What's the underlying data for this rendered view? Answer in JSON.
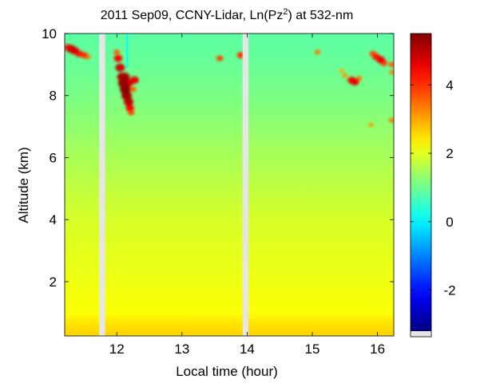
{
  "chart_data": {
    "type": "heatmap",
    "title": {
      "prefix": "2011 Sep09, CCNY-Lidar, Ln(Pz",
      "superscript": "2",
      "suffix": ") at 532-nm"
    },
    "xlabel": "Local time (hour)",
    "ylabel": "Altitude (km)",
    "xlim": [
      11.2,
      16.25
    ],
    "ylim": [
      0.25,
      10
    ],
    "x_ticks": [
      12,
      13,
      14,
      15,
      16
    ],
    "x_tick_labels": [
      "12",
      "13",
      "14",
      "15",
      "16"
    ],
    "y_ticks": [
      2,
      4,
      6,
      8,
      10
    ],
    "y_tick_labels": [
      "2",
      "4",
      "6",
      "8",
      "10"
    ],
    "colorbar": {
      "range": [
        -3.2,
        5.5
      ],
      "ticks": [
        -2,
        0,
        2,
        4
      ],
      "tick_labels": [
        "-2",
        "0",
        "2",
        "4"
      ],
      "colormap": "jet",
      "nodata_color": "#e6e6e6"
    },
    "data_gaps": [
      {
        "x_start": 11.73,
        "x_end": 11.82
      },
      {
        "x_start": 13.93,
        "x_end": 14.02
      }
    ],
    "field_profile": [
      {
        "altitude_km": 0.3,
        "value": 2.6
      },
      {
        "altitude_km": 0.6,
        "value": 2.5
      },
      {
        "altitude_km": 1.0,
        "value": 2.2
      },
      {
        "altitude_km": 2.0,
        "value": 2.1
      },
      {
        "altitude_km": 3.0,
        "value": 2.0
      },
      {
        "altitude_km": 4.0,
        "value": 1.9
      },
      {
        "altitude_km": 5.0,
        "value": 1.7
      },
      {
        "altitude_km": 6.0,
        "value": 1.5
      },
      {
        "altitude_km": 7.0,
        "value": 1.3
      },
      {
        "altitude_km": 8.0,
        "value": 1.1
      },
      {
        "altitude_km": 9.0,
        "value": 0.95
      },
      {
        "altitude_km": 10.0,
        "value": 0.85
      }
    ],
    "cloud_features": [
      {
        "time_hour": 11.25,
        "altitude_km": 9.55,
        "value": 4.2
      },
      {
        "time_hour": 11.3,
        "altitude_km": 9.5,
        "value": 4.8
      },
      {
        "time_hour": 11.35,
        "altitude_km": 9.45,
        "value": 4.6
      },
      {
        "time_hour": 11.42,
        "altitude_km": 9.35,
        "value": 4.2
      },
      {
        "time_hour": 11.5,
        "altitude_km": 9.3,
        "value": 4.0
      },
      {
        "time_hour": 11.55,
        "altitude_km": 9.25,
        "value": 3.4
      },
      {
        "time_hour": 12.0,
        "altitude_km": 9.4,
        "value": 3.6
      },
      {
        "time_hour": 12.02,
        "altitude_km": 9.2,
        "value": 4.4
      },
      {
        "time_hour": 12.05,
        "altitude_km": 8.9,
        "value": 4.8
      },
      {
        "time_hour": 12.08,
        "altitude_km": 8.6,
        "value": 5.0
      },
      {
        "time_hour": 12.1,
        "altitude_km": 8.4,
        "value": 5.3
      },
      {
        "time_hour": 12.13,
        "altitude_km": 8.2,
        "value": 5.4
      },
      {
        "time_hour": 12.15,
        "altitude_km": 8.0,
        "value": 5.2
      },
      {
        "time_hour": 12.18,
        "altitude_km": 7.8,
        "value": 4.9
      },
      {
        "time_hour": 12.2,
        "altitude_km": 7.6,
        "value": 4.4
      },
      {
        "time_hour": 12.22,
        "altitude_km": 7.45,
        "value": 3.8
      },
      {
        "time_hour": 12.12,
        "altitude_km": 8.6,
        "value": 5.1
      },
      {
        "time_hour": 12.18,
        "altitude_km": 8.4,
        "value": 4.7
      },
      {
        "time_hour": 12.27,
        "altitude_km": 8.5,
        "value": 4.6
      },
      {
        "time_hour": 12.25,
        "altitude_km": 8.2,
        "value": 3.6
      },
      {
        "time_hour": 13.58,
        "altitude_km": 9.2,
        "value": 3.8
      },
      {
        "time_hour": 13.9,
        "altitude_km": 9.3,
        "value": 4.0
      },
      {
        "time_hour": 15.08,
        "altitude_km": 9.4,
        "value": 3.4
      },
      {
        "time_hour": 15.45,
        "altitude_km": 8.8,
        "value": 3.0
      },
      {
        "time_hour": 15.5,
        "altitude_km": 8.65,
        "value": 3.2
      },
      {
        "time_hour": 15.6,
        "altitude_km": 8.5,
        "value": 4.3
      },
      {
        "time_hour": 15.65,
        "altitude_km": 8.45,
        "value": 4.6
      },
      {
        "time_hour": 15.72,
        "altitude_km": 8.55,
        "value": 3.4
      },
      {
        "time_hour": 15.93,
        "altitude_km": 9.35,
        "value": 3.8
      },
      {
        "time_hour": 15.98,
        "altitude_km": 9.25,
        "value": 4.2
      },
      {
        "time_hour": 16.05,
        "altitude_km": 9.15,
        "value": 4.5
      },
      {
        "time_hour": 16.1,
        "altitude_km": 9.05,
        "value": 3.9
      },
      {
        "time_hour": 16.22,
        "altitude_km": 9.0,
        "value": 3.6
      },
      {
        "time_hour": 16.22,
        "altitude_km": 8.75,
        "value": 3.3
      },
      {
        "time_hour": 15.9,
        "altitude_km": 7.05,
        "value": 3.1
      },
      {
        "time_hour": 16.22,
        "altitude_km": 7.2,
        "value": 3.4
      }
    ],
    "low_signal_streak": {
      "time_hour": 12.16,
      "altitude_from_km": 8.9,
      "altitude_to_km": 10.0,
      "value": 0.1
    },
    "grid": false,
    "legend": "colorbar-right"
  }
}
